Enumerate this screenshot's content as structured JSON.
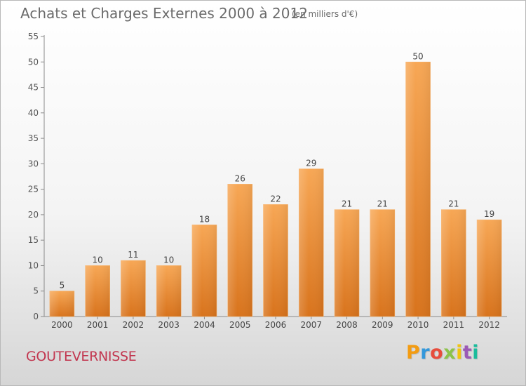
{
  "header": {
    "title": "Achats et Charges Externes 2000 à 2012",
    "subtitle": "(en milliers d'€)"
  },
  "footer": {
    "commune": "GOUTEVERNISSE",
    "logo_text": "Proxiti",
    "logo_colors": [
      "#f39c12",
      "#3498db",
      "#e74c3c",
      "#8bc34a",
      "#f1c40f",
      "#9b59b6",
      "#1abc9c"
    ]
  },
  "chart_data": {
    "type": "bar",
    "title": "Achats et Charges Externes 2000 à 2012",
    "subtitle": "(en milliers d'€)",
    "categories": [
      "2000",
      "2001",
      "2002",
      "2003",
      "2004",
      "2005",
      "2006",
      "2007",
      "2008",
      "2009",
      "2010",
      "2011",
      "2012"
    ],
    "values": [
      5,
      10,
      11,
      10,
      18,
      26,
      22,
      29,
      21,
      21,
      50,
      21,
      19
    ],
    "ylim": [
      0,
      55
    ],
    "yticks": [
      0,
      5,
      10,
      15,
      20,
      25,
      30,
      35,
      40,
      45,
      50,
      55
    ],
    "grid": false,
    "bar_color": "#f0913a",
    "bar_color_dark": "#d8731c"
  }
}
